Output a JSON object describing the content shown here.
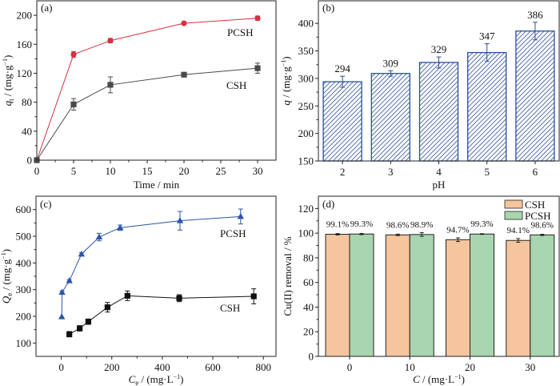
{
  "chart_data": [
    {
      "panel": "(a)",
      "type": "line",
      "title": "",
      "xlabel": "Time / min",
      "ylabel": "q_t / (mg·g⁻¹)",
      "ylabel_parts": {
        "main": "q",
        "sub": "t",
        "unit": " / (mg·g",
        "sup": "-1",
        "close": ")"
      },
      "xlim": [
        0,
        32.5
      ],
      "ylim": [
        0,
        220
      ],
      "xticks": [
        0,
        5,
        10,
        15,
        20,
        25,
        30
      ],
      "yticks": [
        0,
        40,
        80,
        120,
        160,
        200
      ],
      "grid": false,
      "series": [
        {
          "name": "PCSH",
          "color": "#d9303f",
          "marker": "circle",
          "x": [
            0,
            5,
            10,
            20,
            30
          ],
          "y": [
            0,
            146,
            165,
            189,
            196
          ],
          "err": [
            0,
            4,
            3,
            1.5,
            3
          ]
        },
        {
          "name": "CSH",
          "color": "#4a4a4a",
          "marker": "square",
          "x": [
            0,
            5,
            10,
            20,
            30
          ],
          "y": [
            0,
            77,
            104,
            118,
            127
          ],
          "err": [
            0,
            8,
            11,
            2,
            7
          ]
        }
      ]
    },
    {
      "panel": "(b)",
      "type": "bar",
      "title": "",
      "xlabel": "pH",
      "ylabel": "q / (mg·g⁻¹)",
      "ylabel_parts": {
        "main": "q",
        "sub": "",
        "unit": " / (mg·g",
        "sup": "-1",
        "close": ")"
      },
      "categories": [
        "2",
        "3",
        "4",
        "5",
        "6"
      ],
      "values": [
        294,
        309,
        329,
        347,
        386
      ],
      "err": [
        10,
        5,
        10,
        16,
        16
      ],
      "data_labels": [
        "294",
        "309",
        "329",
        "347",
        "386"
      ],
      "ylim": [
        150,
        441
      ],
      "yticks": [
        150,
        200,
        250,
        300,
        350,
        400
      ],
      "color": "#2c4f9e",
      "pattern": "diagonal-hatch",
      "grid": false
    },
    {
      "panel": "(c)",
      "type": "line",
      "title": "",
      "xlabel": "C_e / (mg·L⁻¹)",
      "xlabel_parts": {
        "main": "C",
        "sub": "e",
        "unit": " / (mg·L",
        "sup": "-1",
        "close": ")"
      },
      "ylabel": "Q_e / (mg·g⁻¹)",
      "ylabel_parts": {
        "main": "Q",
        "sub": "e",
        "unit": " / (mg·g",
        "sup": "-1",
        "close": ")"
      },
      "xlim": [
        -100,
        850
      ],
      "ylim": [
        50,
        650
      ],
      "xticks": [
        0,
        200,
        400,
        600,
        800
      ],
      "yticks": [
        100,
        200,
        300,
        400,
        500,
        600
      ],
      "grid": false,
      "series": [
        {
          "name": "PCSH",
          "color": "#2c55a8",
          "marker": "triangle",
          "x": [
            2,
            3,
            32,
            80,
            150,
            233,
            470,
            710
          ],
          "y": [
            198,
            290,
            333,
            433,
            497,
            532,
            558,
            574
          ],
          "err": [
            0,
            5,
            4,
            5,
            14,
            10,
            35,
            28
          ]
        },
        {
          "name": "CSH",
          "color": "#111111",
          "marker": "square",
          "x": [
            32,
            73,
            107,
            183,
            262,
            467,
            762
          ],
          "y": [
            133,
            155,
            180,
            234,
            277,
            268,
            275
          ],
          "err": [
            10,
            10,
            10,
            18,
            18,
            13,
            28
          ]
        }
      ]
    },
    {
      "panel": "(d)",
      "type": "bar",
      "title": "",
      "xlabel": "C / (mg·L⁻¹)",
      "xlabel_parts": {
        "main": "C",
        "sub": "",
        "unit": " / (mg·L",
        "sup": "-1",
        "close": ")"
      },
      "ylabel": "Cu(II) removal /  %",
      "categories": [
        "0",
        "10",
        "20",
        "30"
      ],
      "ylim": [
        0,
        130
      ],
      "yticks": [
        0,
        20,
        40,
        60,
        80,
        100,
        120
      ],
      "legend_position": "top-right",
      "grid": false,
      "series": [
        {
          "name": "CSH",
          "color": "#f5c59d",
          "values": [
            99.1,
            98.6,
            94.7,
            94.1
          ],
          "err": [
            0.6,
            0.6,
            1.5,
            1.5
          ],
          "data_labels": [
            "99.1%",
            "98.6%",
            "94.7%",
            "94.1%"
          ]
        },
        {
          "name": "PCSH",
          "color": "#a8d5b0",
          "values": [
            99.3,
            98.9,
            99.3,
            98.6
          ],
          "err": [
            0.5,
            1.5,
            0.3,
            0.5
          ],
          "data_labels": [
            "99.3%",
            "98.9%",
            "99.3%",
            "98.6%"
          ]
        }
      ]
    }
  ]
}
